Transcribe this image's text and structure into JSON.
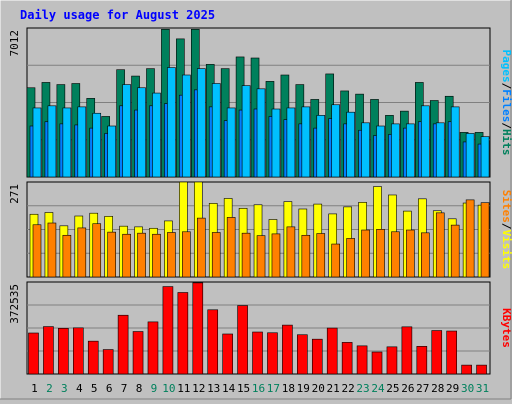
{
  "title": "Daily usage for August 2025",
  "colors": {
    "background": "#c0c0c0",
    "plot_background": "#c0c0c0",
    "title": "#0000ff",
    "hits": "#00805c",
    "files": "#0080ff",
    "pages": "#00c0ff",
    "visits": "#ffff00",
    "sites": "#ff8000",
    "kbytes": "#ff0000",
    "weekend_label": "#00805c",
    "weekday_label": "#000000"
  },
  "right_labels": {
    "top": [
      "Pages",
      "/",
      "Files",
      "/",
      "Hits"
    ],
    "middle": [
      "Sites",
      "/",
      "Visits"
    ],
    "bottom": [
      "KBytes"
    ]
  },
  "chart_data": [
    {
      "type": "bar",
      "panel": "hits-files-pages",
      "ymax_label": "7012",
      "ylim": [
        0,
        7012
      ],
      "grid": true,
      "categories": [
        "1",
        "2",
        "3",
        "4",
        "5",
        "6",
        "7",
        "8",
        "9",
        "10",
        "11",
        "12",
        "13",
        "14",
        "15",
        "16",
        "17",
        "18",
        "19",
        "20",
        "21",
        "22",
        "23",
        "24",
        "25",
        "26",
        "27",
        "28",
        "29",
        "30",
        "31"
      ],
      "weekend_days": [
        "2",
        "3",
        "9",
        "10",
        "16",
        "17",
        "23",
        "24",
        "30",
        "31"
      ],
      "series": [
        {
          "name": "Hits",
          "values": [
            4200,
            4450,
            4350,
            4400,
            3700,
            2850,
            5050,
            4750,
            5100,
            6950,
            6500,
            6950,
            5300,
            5100,
            5650,
            5600,
            4500,
            4800,
            4350,
            3650,
            4850,
            4050,
            3900,
            3650,
            2900,
            3100,
            4450,
            3600,
            3800,
            2100,
            2100
          ]
        },
        {
          "name": "Files",
          "values": [
            2400,
            2600,
            2500,
            2450,
            2300,
            2050,
            3350,
            3150,
            3350,
            3450,
            3850,
            4100,
            3300,
            2650,
            3150,
            3200,
            2850,
            2700,
            2500,
            2300,
            2750,
            2500,
            2200,
            1950,
            2000,
            2300,
            2600,
            2500,
            2600,
            1650,
            1550
          ]
        },
        {
          "name": "Pages",
          "values": [
            3250,
            3350,
            3250,
            3300,
            3000,
            2400,
            4350,
            4200,
            3950,
            5150,
            4800,
            5100,
            4400,
            3250,
            4300,
            4150,
            3200,
            3250,
            3300,
            2900,
            3400,
            3050,
            2550,
            2400,
            2500,
            2500,
            3350,
            2550,
            3300,
            2050,
            1900
          ]
        }
      ]
    },
    {
      "type": "bar",
      "panel": "visits-sites",
      "ymax_label": "271",
      "ylim": [
        0,
        271
      ],
      "grid": true,
      "categories": [
        "1",
        "2",
        "3",
        "4",
        "5",
        "6",
        "7",
        "8",
        "9",
        "10",
        "11",
        "12",
        "13",
        "14",
        "15",
        "16",
        "17",
        "18",
        "19",
        "20",
        "21",
        "22",
        "23",
        "24",
        "25",
        "26",
        "27",
        "28",
        "29",
        "30",
        "31"
      ],
      "weekend_days": [
        "2",
        "3",
        "9",
        "10",
        "16",
        "17",
        "23",
        "24",
        "30",
        "31"
      ],
      "series": [
        {
          "name": "Visits",
          "values": [
            179,
            184,
            146,
            174,
            182,
            173,
            145,
            143,
            139,
            160,
            272,
            276,
            210,
            224,
            196,
            206,
            164,
            215,
            194,
            208,
            180,
            200,
            213,
            258,
            234,
            188,
            223,
            189,
            166,
            211,
            205
          ]
        },
        {
          "name": "Sites",
          "values": [
            149,
            154,
            119,
            140,
            152,
            128,
            122,
            125,
            122,
            127,
            129,
            168,
            127,
            170,
            125,
            118,
            123,
            143,
            119,
            124,
            94,
            110,
            134,
            136,
            129,
            134,
            126,
            183,
            148,
            220,
            212
          ]
        }
      ]
    },
    {
      "type": "bar",
      "panel": "kbytes",
      "ymax_label": "372535",
      "ylim": [
        0,
        372535
      ],
      "grid": true,
      "categories": [
        "1",
        "2",
        "3",
        "4",
        "5",
        "6",
        "7",
        "8",
        "9",
        "10",
        "11",
        "12",
        "13",
        "14",
        "15",
        "16",
        "17",
        "18",
        "19",
        "20",
        "21",
        "22",
        "23",
        "24",
        "25",
        "26",
        "27",
        "28",
        "29",
        "30",
        "31"
      ],
      "weekend_days": [
        "2",
        "3",
        "9",
        "10",
        "16",
        "17",
        "23",
        "24",
        "30",
        "31"
      ],
      "series": [
        {
          "name": "KBytes",
          "values": [
            166000,
            192000,
            185000,
            187000,
            133000,
            99000,
            238000,
            172000,
            211000,
            354000,
            330000,
            369000,
            260000,
            162000,
            277000,
            170000,
            167000,
            198000,
            159000,
            141000,
            186000,
            128000,
            114000,
            89000,
            110000,
            191000,
            112000,
            176000,
            174000,
            36000,
            36000
          ]
        }
      ]
    }
  ]
}
